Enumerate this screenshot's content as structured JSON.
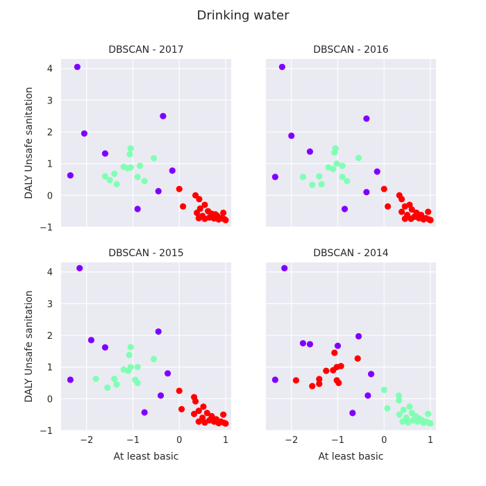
{
  "figure": {
    "title": "Drinking water",
    "colors": {
      "panel_bg": "#eaeaf2",
      "grid": "#ffffff",
      "purple": "#8000ff",
      "mint": "#80ffb4",
      "red": "#ff0000"
    }
  },
  "chart_data": [
    {
      "type": "scatter",
      "title": "DBSCAN - 2017",
      "xlabel": "",
      "ylabel": "DALY Unsafe sanitation",
      "xlim": [
        -2.55,
        1.12
      ],
      "ylim": [
        -1.0,
        4.3
      ],
      "xticks": [
        -2,
        -1,
        0,
        1
      ],
      "yticks": [
        -1,
        0,
        1,
        2,
        3,
        4
      ],
      "grid": true,
      "points": [
        {
          "x": -2.2,
          "y": 4.05,
          "c": "purple"
        },
        {
          "x": -2.05,
          "y": 1.95,
          "c": "purple"
        },
        {
          "x": -2.35,
          "y": 0.63,
          "c": "purple"
        },
        {
          "x": -1.6,
          "y": 1.32,
          "c": "purple"
        },
        {
          "x": -0.35,
          "y": 2.5,
          "c": "purple"
        },
        {
          "x": -0.15,
          "y": 0.78,
          "c": "purple"
        },
        {
          "x": -0.45,
          "y": 0.13,
          "c": "purple"
        },
        {
          "x": -0.9,
          "y": -0.43,
          "c": "purple"
        },
        {
          "x": -1.05,
          "y": 1.48,
          "c": "mint"
        },
        {
          "x": -1.07,
          "y": 1.3,
          "c": "mint"
        },
        {
          "x": -0.55,
          "y": 1.17,
          "c": "mint"
        },
        {
          "x": -1.2,
          "y": 0.9,
          "c": "mint"
        },
        {
          "x": -1.12,
          "y": 0.86,
          "c": "mint"
        },
        {
          "x": -1.05,
          "y": 0.88,
          "c": "mint"
        },
        {
          "x": -0.85,
          "y": 0.93,
          "c": "mint"
        },
        {
          "x": -1.4,
          "y": 0.68,
          "c": "mint"
        },
        {
          "x": -1.6,
          "y": 0.6,
          "c": "mint"
        },
        {
          "x": -1.5,
          "y": 0.48,
          "c": "mint"
        },
        {
          "x": -1.35,
          "y": 0.35,
          "c": "mint"
        },
        {
          "x": -0.9,
          "y": 0.58,
          "c": "mint"
        },
        {
          "x": -0.75,
          "y": 0.45,
          "c": "mint"
        },
        {
          "x": 0.0,
          "y": 0.2,
          "c": "red"
        },
        {
          "x": 0.08,
          "y": -0.35,
          "c": "red"
        },
        {
          "x": 0.35,
          "y": 0.0,
          "c": "red"
        },
        {
          "x": 0.43,
          "y": -0.12,
          "c": "red"
        },
        {
          "x": 0.45,
          "y": -0.42,
          "c": "red"
        },
        {
          "x": 0.55,
          "y": -0.3,
          "c": "red"
        },
        {
          "x": 0.38,
          "y": -0.55,
          "c": "red"
        },
        {
          "x": 0.62,
          "y": -0.5,
          "c": "red"
        },
        {
          "x": 0.7,
          "y": -0.58,
          "c": "red"
        },
        {
          "x": 0.5,
          "y": -0.65,
          "c": "red"
        },
        {
          "x": 0.42,
          "y": -0.72,
          "c": "red"
        },
        {
          "x": 0.55,
          "y": -0.74,
          "c": "red"
        },
        {
          "x": 0.65,
          "y": -0.7,
          "c": "red"
        },
        {
          "x": 0.75,
          "y": -0.73,
          "c": "red"
        },
        {
          "x": 0.82,
          "y": -0.65,
          "c": "red"
        },
        {
          "x": 0.85,
          "y": -0.76,
          "c": "red"
        },
        {
          "x": 0.9,
          "y": -0.72,
          "c": "red"
        },
        {
          "x": 0.95,
          "y": -0.55,
          "c": "red"
        },
        {
          "x": 0.97,
          "y": -0.75,
          "c": "red"
        },
        {
          "x": 1.0,
          "y": -0.78,
          "c": "red"
        },
        {
          "x": 0.78,
          "y": -0.6,
          "c": "red"
        }
      ]
    },
    {
      "type": "scatter",
      "title": "DBSCAN - 2016",
      "xlabel": "",
      "ylabel": "",
      "xlim": [
        -2.55,
        1.12
      ],
      "ylim": [
        -1.0,
        4.3
      ],
      "xticks": [
        -2,
        -1,
        0,
        1
      ],
      "yticks": [
        -1,
        0,
        1,
        2,
        3,
        4
      ],
      "grid": true,
      "points": [
        {
          "x": -2.2,
          "y": 4.05,
          "c": "purple"
        },
        {
          "x": -2.0,
          "y": 1.88,
          "c": "purple"
        },
        {
          "x": -2.35,
          "y": 0.58,
          "c": "purple"
        },
        {
          "x": -1.6,
          "y": 1.38,
          "c": "purple"
        },
        {
          "x": -0.38,
          "y": 2.42,
          "c": "purple"
        },
        {
          "x": -0.15,
          "y": 0.75,
          "c": "purple"
        },
        {
          "x": -0.38,
          "y": 0.1,
          "c": "purple"
        },
        {
          "x": -0.85,
          "y": -0.43,
          "c": "purple"
        },
        {
          "x": -1.05,
          "y": 1.48,
          "c": "mint"
        },
        {
          "x": -1.07,
          "y": 1.35,
          "c": "mint"
        },
        {
          "x": -0.55,
          "y": 1.18,
          "c": "mint"
        },
        {
          "x": -1.02,
          "y": 1.0,
          "c": "mint"
        },
        {
          "x": -0.9,
          "y": 0.93,
          "c": "mint"
        },
        {
          "x": -1.2,
          "y": 0.88,
          "c": "mint"
        },
        {
          "x": -1.1,
          "y": 0.83,
          "c": "mint"
        },
        {
          "x": -1.4,
          "y": 0.6,
          "c": "mint"
        },
        {
          "x": -1.75,
          "y": 0.58,
          "c": "mint"
        },
        {
          "x": -0.9,
          "y": 0.58,
          "c": "mint"
        },
        {
          "x": -0.8,
          "y": 0.45,
          "c": "mint"
        },
        {
          "x": -1.55,
          "y": 0.33,
          "c": "mint"
        },
        {
          "x": -1.35,
          "y": 0.35,
          "c": "mint"
        },
        {
          "x": 0.0,
          "y": 0.2,
          "c": "red"
        },
        {
          "x": 0.08,
          "y": -0.35,
          "c": "red"
        },
        {
          "x": 0.33,
          "y": 0.0,
          "c": "red"
        },
        {
          "x": 0.38,
          "y": -0.12,
          "c": "red"
        },
        {
          "x": 0.45,
          "y": -0.35,
          "c": "red"
        },
        {
          "x": 0.55,
          "y": -0.3,
          "c": "red"
        },
        {
          "x": 0.38,
          "y": -0.52,
          "c": "red"
        },
        {
          "x": 0.6,
          "y": -0.45,
          "c": "red"
        },
        {
          "x": 0.7,
          "y": -0.55,
          "c": "red"
        },
        {
          "x": 0.5,
          "y": -0.62,
          "c": "red"
        },
        {
          "x": 0.45,
          "y": -0.74,
          "c": "red"
        },
        {
          "x": 0.58,
          "y": -0.74,
          "c": "red"
        },
        {
          "x": 0.65,
          "y": -0.68,
          "c": "red"
        },
        {
          "x": 0.75,
          "y": -0.72,
          "c": "red"
        },
        {
          "x": 0.8,
          "y": -0.62,
          "c": "red"
        },
        {
          "x": 0.85,
          "y": -0.76,
          "c": "red"
        },
        {
          "x": 0.9,
          "y": -0.72,
          "c": "red"
        },
        {
          "x": 0.95,
          "y": -0.52,
          "c": "red"
        },
        {
          "x": 0.97,
          "y": -0.76,
          "c": "red"
        },
        {
          "x": 1.0,
          "y": -0.78,
          "c": "red"
        },
        {
          "x": 0.72,
          "y": -0.64,
          "c": "red"
        }
      ]
    },
    {
      "type": "scatter",
      "title": "DBSCAN - 2015",
      "xlabel": "At least basic",
      "ylabel": "DALY Unsafe sanitation",
      "xlim": [
        -2.55,
        1.12
      ],
      "ylim": [
        -1.0,
        4.3
      ],
      "xticks": [
        -2,
        -1,
        0,
        1
      ],
      "yticks": [
        -1,
        0,
        1,
        2,
        3,
        4
      ],
      "grid": true,
      "points": [
        {
          "x": -2.15,
          "y": 4.12,
          "c": "purple"
        },
        {
          "x": -1.9,
          "y": 1.85,
          "c": "purple"
        },
        {
          "x": -2.35,
          "y": 0.6,
          "c": "purple"
        },
        {
          "x": -1.6,
          "y": 1.62,
          "c": "purple"
        },
        {
          "x": -0.45,
          "y": 2.12,
          "c": "purple"
        },
        {
          "x": -0.25,
          "y": 0.8,
          "c": "purple"
        },
        {
          "x": -0.4,
          "y": 0.1,
          "c": "purple"
        },
        {
          "x": -0.75,
          "y": -0.43,
          "c": "purple"
        },
        {
          "x": -1.05,
          "y": 1.63,
          "c": "mint"
        },
        {
          "x": -1.08,
          "y": 1.38,
          "c": "mint"
        },
        {
          "x": -0.55,
          "y": 1.25,
          "c": "mint"
        },
        {
          "x": -1.05,
          "y": 1.0,
          "c": "mint"
        },
        {
          "x": -0.9,
          "y": 1.0,
          "c": "mint"
        },
        {
          "x": -1.2,
          "y": 0.92,
          "c": "mint"
        },
        {
          "x": -1.1,
          "y": 0.88,
          "c": "mint"
        },
        {
          "x": -1.4,
          "y": 0.63,
          "c": "mint"
        },
        {
          "x": -1.8,
          "y": 0.63,
          "c": "mint"
        },
        {
          "x": -0.95,
          "y": 0.6,
          "c": "mint"
        },
        {
          "x": -0.9,
          "y": 0.5,
          "c": "mint"
        },
        {
          "x": -1.55,
          "y": 0.35,
          "c": "mint"
        },
        {
          "x": -1.35,
          "y": 0.45,
          "c": "mint"
        },
        {
          "x": 0.0,
          "y": 0.25,
          "c": "red"
        },
        {
          "x": 0.05,
          "y": -0.33,
          "c": "red"
        },
        {
          "x": 0.32,
          "y": 0.05,
          "c": "red"
        },
        {
          "x": 0.35,
          "y": -0.08,
          "c": "red"
        },
        {
          "x": 0.42,
          "y": -0.38,
          "c": "red"
        },
        {
          "x": 0.52,
          "y": -0.25,
          "c": "red"
        },
        {
          "x": 0.32,
          "y": -0.48,
          "c": "red"
        },
        {
          "x": 0.6,
          "y": -0.45,
          "c": "red"
        },
        {
          "x": 0.7,
          "y": -0.55,
          "c": "red"
        },
        {
          "x": 0.5,
          "y": -0.6,
          "c": "red"
        },
        {
          "x": 0.42,
          "y": -0.72,
          "c": "red"
        },
        {
          "x": 0.55,
          "y": -0.75,
          "c": "red"
        },
        {
          "x": 0.65,
          "y": -0.68,
          "c": "red"
        },
        {
          "x": 0.75,
          "y": -0.72,
          "c": "red"
        },
        {
          "x": 0.8,
          "y": -0.65,
          "c": "red"
        },
        {
          "x": 0.85,
          "y": -0.77,
          "c": "red"
        },
        {
          "x": 0.9,
          "y": -0.72,
          "c": "red"
        },
        {
          "x": 0.95,
          "y": -0.5,
          "c": "red"
        },
        {
          "x": 0.97,
          "y": -0.76,
          "c": "red"
        },
        {
          "x": 1.0,
          "y": -0.78,
          "c": "red"
        },
        {
          "x": 0.72,
          "y": -0.62,
          "c": "red"
        }
      ]
    },
    {
      "type": "scatter",
      "title": "DBSCAN - 2014",
      "xlabel": "At least basic",
      "ylabel": "",
      "xlim": [
        -2.55,
        1.12
      ],
      "ylim": [
        -1.0,
        4.3
      ],
      "xticks": [
        -2,
        -1,
        0,
        1
      ],
      "yticks": [
        -1,
        0,
        1,
        2,
        3,
        4
      ],
      "grid": true,
      "points": [
        {
          "x": -2.15,
          "y": 4.12,
          "c": "purple"
        },
        {
          "x": -1.75,
          "y": 1.75,
          "c": "purple"
        },
        {
          "x": -1.6,
          "y": 1.72,
          "c": "purple"
        },
        {
          "x": -2.35,
          "y": 0.6,
          "c": "purple"
        },
        {
          "x": -1.0,
          "y": 1.67,
          "c": "purple"
        },
        {
          "x": -0.55,
          "y": 1.97,
          "c": "purple"
        },
        {
          "x": -0.28,
          "y": 0.78,
          "c": "purple"
        },
        {
          "x": -0.35,
          "y": 0.1,
          "c": "purple"
        },
        {
          "x": -0.68,
          "y": -0.45,
          "c": "purple"
        },
        {
          "x": -1.07,
          "y": 1.45,
          "c": "red"
        },
        {
          "x": -0.57,
          "y": 1.27,
          "c": "red"
        },
        {
          "x": -1.02,
          "y": 1.0,
          "c": "red"
        },
        {
          "x": -0.93,
          "y": 1.03,
          "c": "red"
        },
        {
          "x": -1.1,
          "y": 0.9,
          "c": "red"
        },
        {
          "x": -1.25,
          "y": 0.88,
          "c": "red"
        },
        {
          "x": -1.4,
          "y": 0.62,
          "c": "red"
        },
        {
          "x": -1.9,
          "y": 0.58,
          "c": "red"
        },
        {
          "x": -1.02,
          "y": 0.58,
          "c": "red"
        },
        {
          "x": -0.98,
          "y": 0.5,
          "c": "red"
        },
        {
          "x": -1.55,
          "y": 0.4,
          "c": "red"
        },
        {
          "x": -1.4,
          "y": 0.47,
          "c": "red"
        },
        {
          "x": 0.0,
          "y": 0.28,
          "c": "mint"
        },
        {
          "x": 0.07,
          "y": -0.3,
          "c": "mint"
        },
        {
          "x": 0.32,
          "y": 0.1,
          "c": "mint"
        },
        {
          "x": 0.32,
          "y": -0.05,
          "c": "mint"
        },
        {
          "x": 0.42,
          "y": -0.35,
          "c": "mint"
        },
        {
          "x": 0.55,
          "y": -0.25,
          "c": "mint"
        },
        {
          "x": 0.33,
          "y": -0.5,
          "c": "mint"
        },
        {
          "x": 0.6,
          "y": -0.45,
          "c": "mint"
        },
        {
          "x": 0.68,
          "y": -0.55,
          "c": "mint"
        },
        {
          "x": 0.48,
          "y": -0.6,
          "c": "mint"
        },
        {
          "x": 0.4,
          "y": -0.72,
          "c": "mint"
        },
        {
          "x": 0.52,
          "y": -0.75,
          "c": "mint"
        },
        {
          "x": 0.62,
          "y": -0.68,
          "c": "mint"
        },
        {
          "x": 0.72,
          "y": -0.72,
          "c": "mint"
        },
        {
          "x": 0.8,
          "y": -0.66,
          "c": "mint"
        },
        {
          "x": 0.85,
          "y": -0.76,
          "c": "mint"
        },
        {
          "x": 0.9,
          "y": -0.72,
          "c": "mint"
        },
        {
          "x": 0.95,
          "y": -0.48,
          "c": "mint"
        },
        {
          "x": 0.97,
          "y": -0.76,
          "c": "mint"
        },
        {
          "x": 1.0,
          "y": -0.78,
          "c": "mint"
        },
        {
          "x": 0.75,
          "y": -0.62,
          "c": "mint"
        }
      ]
    }
  ]
}
